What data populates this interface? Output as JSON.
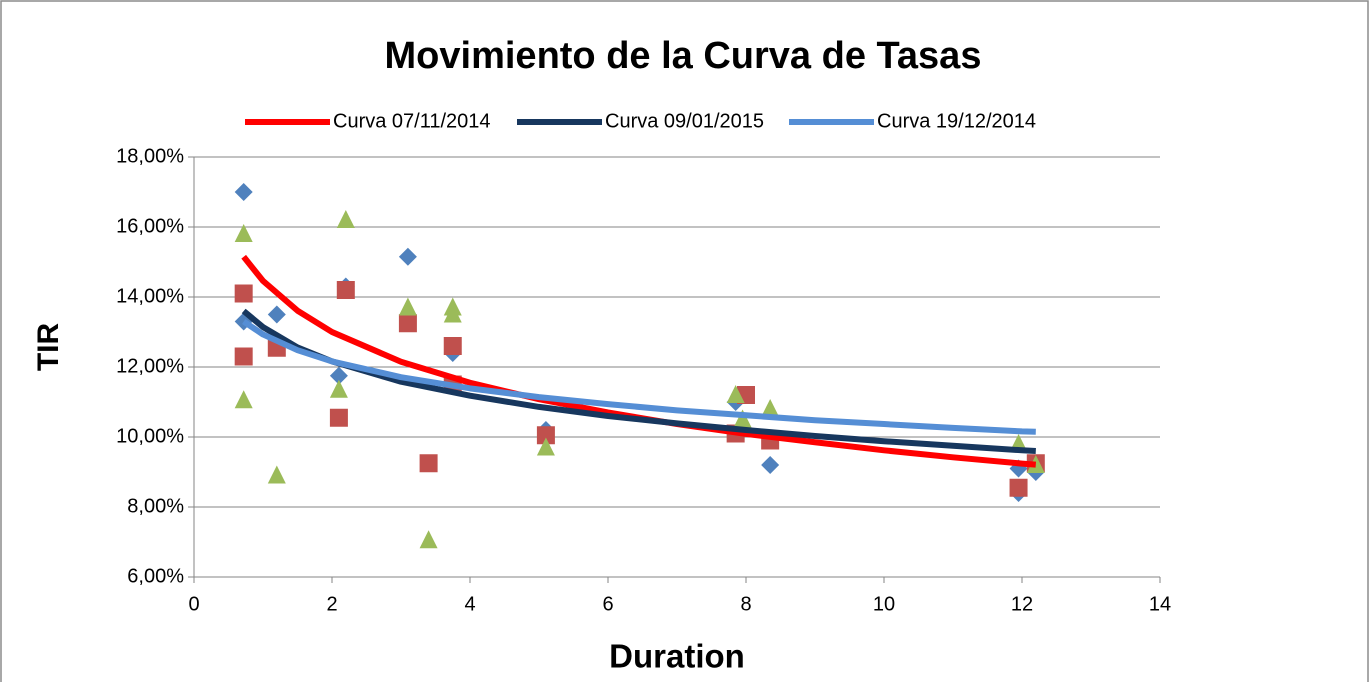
{
  "chart_data": {
    "type": "scatter",
    "title": "Movimiento de la Curva de Tasas",
    "x_label": "Duration",
    "y_label": "TIR",
    "xlim": [
      0,
      14
    ],
    "xticks": [
      0,
      2,
      4,
      6,
      8,
      10,
      12,
      14
    ],
    "ylim": [
      6,
      18
    ],
    "yticks": [
      {
        "value": 6,
        "label": "6,00%"
      },
      {
        "value": 8,
        "label": "8,00%"
      },
      {
        "value": 10,
        "label": "10,00%"
      },
      {
        "value": 12,
        "label": "12,00%"
      },
      {
        "value": 14,
        "label": "14,00%"
      },
      {
        "value": 16,
        "label": "16,00%"
      },
      {
        "value": 18,
        "label": "18,00%"
      }
    ],
    "grid": true,
    "legend": "top",
    "series": [
      {
        "marker": "diamond",
        "color": "#4f81bd",
        "x": [
          0.72,
          0.72,
          1.2,
          2.1,
          2.2,
          3.1,
          3.75,
          5.1,
          7.85,
          8.35,
          11.95,
          11.95,
          12.2
        ],
        "values": [
          17.0,
          13.3,
          13.5,
          11.75,
          14.3,
          15.15,
          12.4,
          10.2,
          11.0,
          9.2,
          8.4,
          9.1,
          9.0
        ]
      },
      {
        "marker": "square",
        "color": "#c0504d",
        "x": [
          0.72,
          0.72,
          1.2,
          2.1,
          2.2,
          3.1,
          3.4,
          3.75,
          3.75,
          5.1,
          7.85,
          8.0,
          8.35,
          11.95,
          12.2
        ],
        "values": [
          14.1,
          12.3,
          12.55,
          10.55,
          14.2,
          13.25,
          9.25,
          12.6,
          11.5,
          10.05,
          10.1,
          11.2,
          9.9,
          8.55,
          9.25
        ]
      },
      {
        "marker": "triangle",
        "color": "#9bbb59",
        "x": [
          0.72,
          0.72,
          1.2,
          2.1,
          2.2,
          3.1,
          3.4,
          3.75,
          3.75,
          5.1,
          7.85,
          7.95,
          8.35,
          11.95,
          12.2
        ],
        "values": [
          15.8,
          11.05,
          8.9,
          11.35,
          16.2,
          13.7,
          7.05,
          13.5,
          13.7,
          9.7,
          11.2,
          10.5,
          10.8,
          9.8,
          9.2
        ]
      },
      {
        "name": "Curva 07/11/2014",
        "line": true,
        "color": "#ff0000",
        "x": [
          0.72,
          1,
          1.5,
          2,
          3,
          4,
          5,
          6,
          7,
          8,
          9,
          10,
          11,
          12,
          12.2
        ],
        "values": [
          15.15,
          14.46,
          13.61,
          13.0,
          12.15,
          11.55,
          11.08,
          10.7,
          10.37,
          10.09,
          9.85,
          9.62,
          9.42,
          9.24,
          9.21
        ]
      },
      {
        "name": "Curva 09/01/2015",
        "line": true,
        "color": "#17375e",
        "x": [
          0.72,
          1,
          1.5,
          2,
          3,
          4,
          5,
          6,
          7,
          8,
          9,
          10,
          11,
          12,
          12.2
        ],
        "values": [
          13.6,
          13.14,
          12.56,
          12.16,
          11.58,
          11.18,
          10.86,
          10.6,
          10.39,
          10.2,
          10.03,
          9.88,
          9.75,
          9.62,
          9.6
        ]
      },
      {
        "name": "Curva 19/12/2014",
        "line": true,
        "color": "#558ed5",
        "x": [
          0.72,
          1,
          1.5,
          2,
          3,
          4,
          5,
          6,
          7,
          8,
          9,
          10,
          11,
          12,
          12.2
        ],
        "values": [
          13.3,
          12.93,
          12.48,
          12.16,
          11.71,
          11.39,
          11.14,
          10.94,
          10.76,
          10.62,
          10.48,
          10.37,
          10.26,
          10.16,
          10.15
        ]
      }
    ]
  }
}
